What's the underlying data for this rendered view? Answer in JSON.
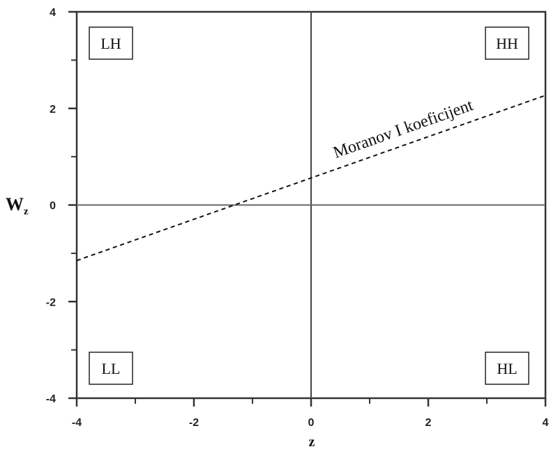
{
  "chart_data": {
    "type": "scatter",
    "xlabel": "z",
    "ylabel": {
      "main": "W",
      "sub": "z"
    },
    "xlim": [
      -4,
      4
    ],
    "ylim": [
      -4,
      4
    ],
    "x_ticks": [
      -4,
      -2,
      0,
      2,
      4
    ],
    "y_ticks": [
      -4,
      -2,
      0,
      2,
      4
    ],
    "x_tick_labels": [
      "-4",
      "-2",
      "0",
      "2",
      "4"
    ],
    "y_tick_labels": [
      "-4",
      "-2",
      "0",
      "2",
      "4"
    ],
    "minor_tick_step": 1,
    "grid": false,
    "reference_lines": [
      {
        "orientation": "vertical",
        "value": 0
      },
      {
        "orientation": "horizontal",
        "value": 0
      }
    ],
    "regression_line": {
      "label": "Moranov I koeficijent",
      "style": "dashed",
      "x": [
        -4,
        4
      ],
      "y": [
        -1.15,
        2.27
      ]
    },
    "quadrant_labels": [
      {
        "text": "LH",
        "quadrant": "top-left"
      },
      {
        "text": "HH",
        "quadrant": "top-right"
      },
      {
        "text": "LL",
        "quadrant": "bottom-left"
      },
      {
        "text": "HL",
        "quadrant": "bottom-right"
      }
    ]
  }
}
